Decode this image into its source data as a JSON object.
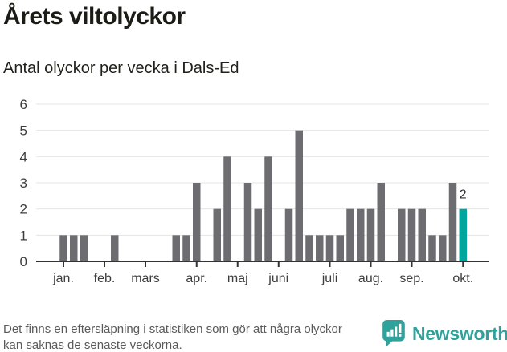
{
  "header": {
    "title": "Årets viltolyckor",
    "subtitle": "Antal olyckor per vecka i Dals-Ed"
  },
  "chart_data": {
    "type": "bar",
    "title": "Årets viltolyckor",
    "subtitle": "Antal olyckor per vecka i Dals-Ed",
    "xlabel": "",
    "ylabel": "",
    "x_unit": "vecka",
    "first_week": 1,
    "values": [
      1,
      1,
      1,
      0,
      0,
      1,
      0,
      0,
      0,
      0,
      0,
      1,
      1,
      3,
      0,
      2,
      4,
      0,
      3,
      2,
      4,
      0,
      2,
      5,
      1,
      1,
      1,
      1,
      2,
      2,
      2,
      3,
      0,
      2,
      2,
      2,
      1,
      1,
      3,
      2
    ],
    "ylim": [
      0,
      6
    ],
    "yticks": [
      0,
      1,
      2,
      3,
      4,
      5,
      6
    ],
    "grid": "horizontal",
    "month_ticks": [
      {
        "label": "jan.",
        "week": 1
      },
      {
        "label": "feb.",
        "week": 5
      },
      {
        "label": "mars",
        "week": 9
      },
      {
        "label": "apr.",
        "week": 14
      },
      {
        "label": "maj",
        "week": 18
      },
      {
        "label": "juni",
        "week": 22
      },
      {
        "label": "juli",
        "week": 27
      },
      {
        "label": "aug.",
        "week": 31
      },
      {
        "label": "sep.",
        "week": 35
      },
      {
        "label": "okt.",
        "week": 40
      }
    ],
    "highlight": {
      "index": 39,
      "value": 2,
      "label": "2",
      "color": "#00a69e"
    },
    "bar_color": "#6d6c71",
    "grid_color": "#e4e4e4",
    "axis_color": "#333333"
  },
  "footer": {
    "note": "Det finns en eftersläpning i statistiken som gör att några olyckor kan saknas de senaste veckorna."
  },
  "branding": {
    "name": "Newsworthy",
    "color": "#2ea29b",
    "icon": "newsworthy-speech-bubble-chart-icon"
  }
}
